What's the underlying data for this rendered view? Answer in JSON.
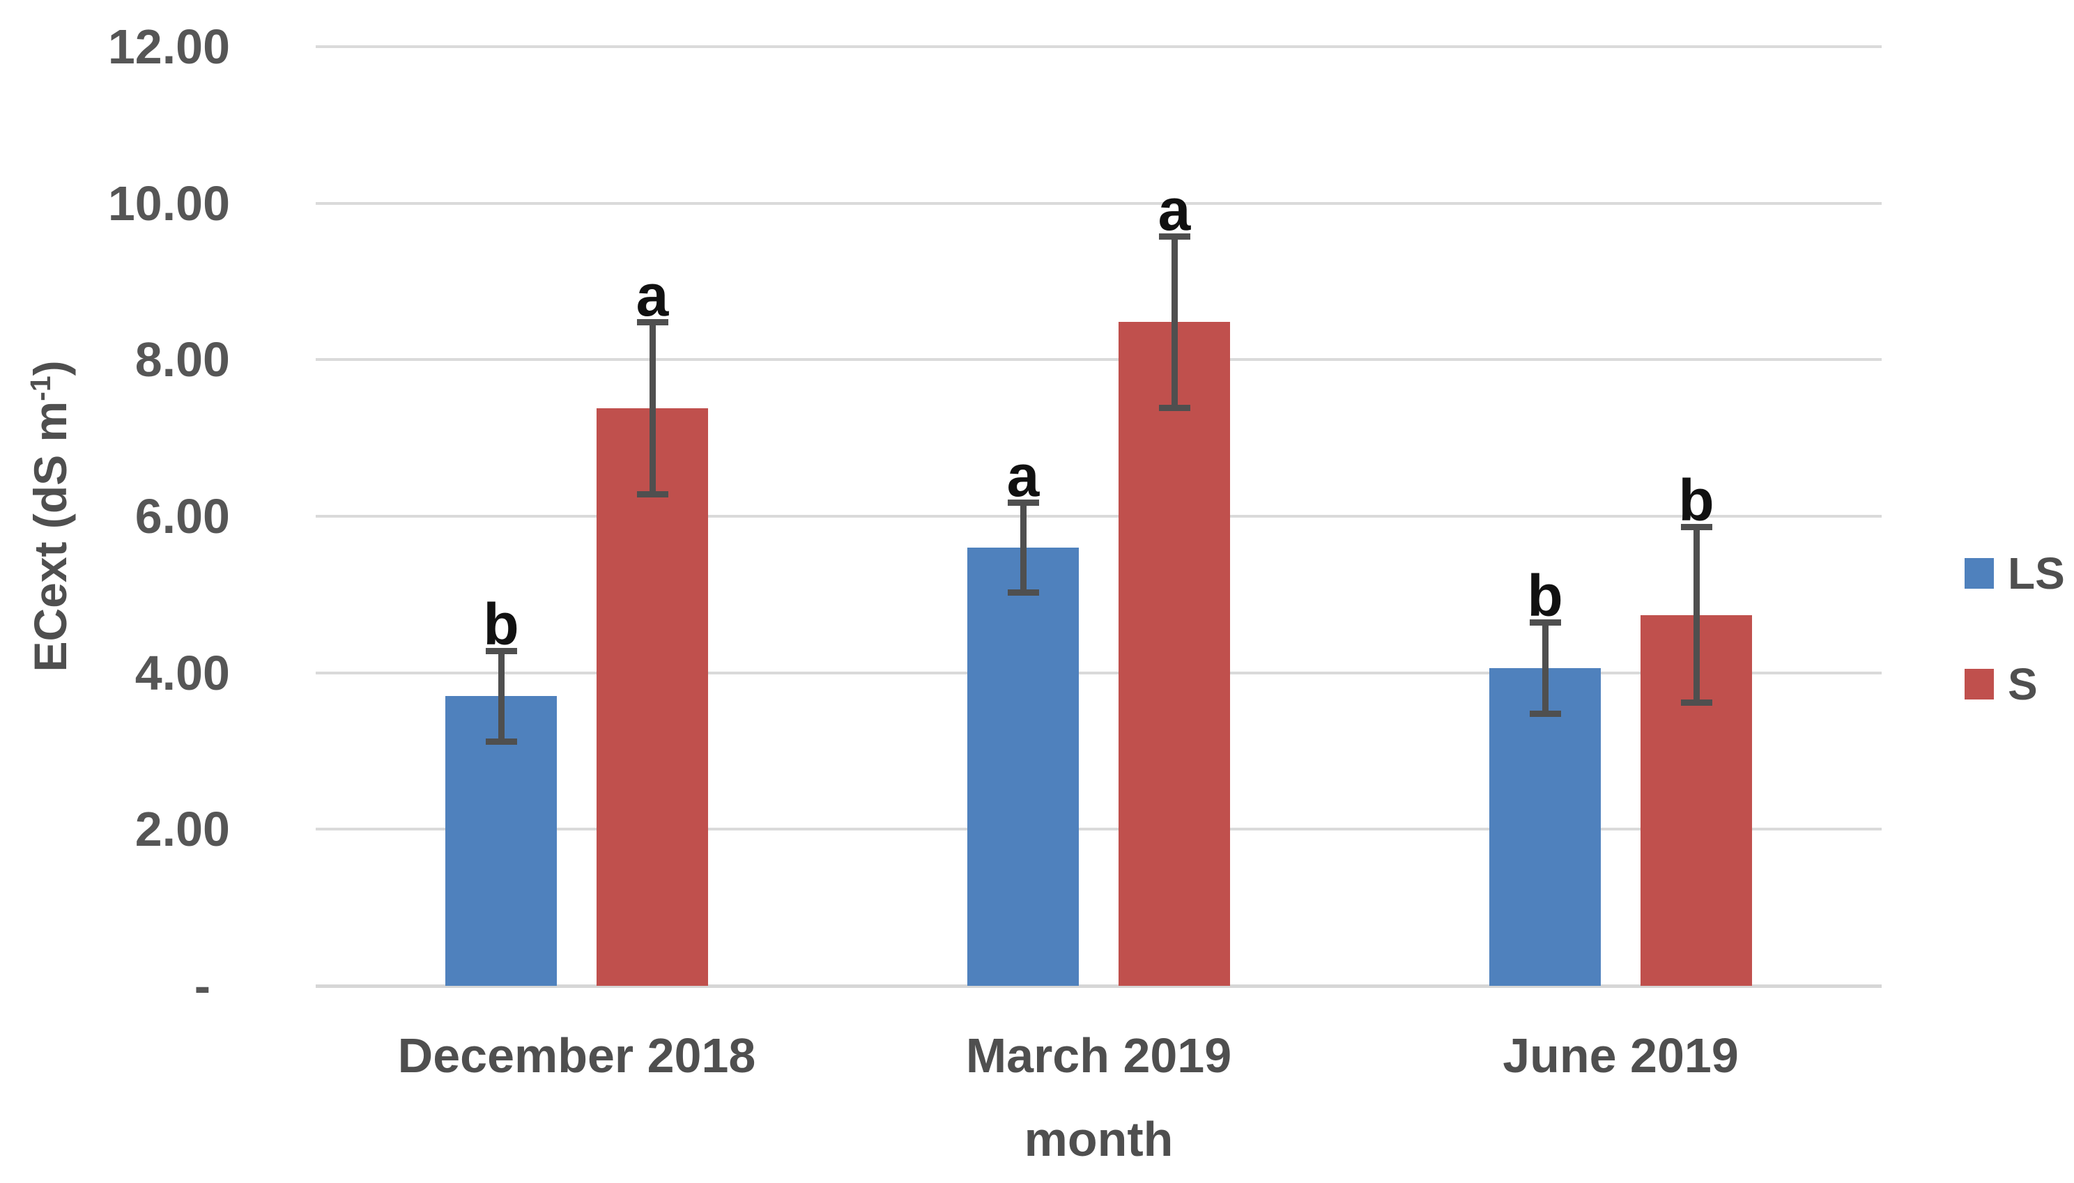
{
  "chart_data": {
    "type": "bar",
    "title": "",
    "categories": [
      "December 2018",
      "March 2019",
      "June 2019"
    ],
    "series": [
      {
        "name": "LS",
        "color": "#4F81BD",
        "values": [
          3.7,
          5.6,
          4.06
        ],
        "errors": [
          0.58,
          0.58,
          0.59
        ],
        "letters": [
          "b",
          "a",
          "b"
        ]
      },
      {
        "name": "S",
        "color": "#C0504D",
        "values": [
          7.38,
          8.48,
          4.74
        ],
        "errors": [
          1.1,
          1.1,
          1.13
        ],
        "letters": [
          "a",
          "a",
          "b"
        ]
      }
    ],
    "xlabel": "month",
    "ylabel": "ECext (dS m-1)",
    "ylim": [
      0,
      12
    ],
    "ytick_step": 2,
    "ytick_labels": [
      "-",
      "2.00",
      "4.00",
      "6.00",
      "8.00",
      "10.00",
      "12.00"
    ],
    "grid": true,
    "legend_position": "right"
  },
  "axis": {
    "y_title_prefix": "ECext (dS m",
    "y_title_sup": "-1",
    "y_title_suffix": ")",
    "x_title": "month"
  },
  "legend": {
    "items": [
      {
        "label": "LS",
        "color": "#4F81BD"
      },
      {
        "label": "S",
        "color": "#C0504D"
      }
    ]
  }
}
